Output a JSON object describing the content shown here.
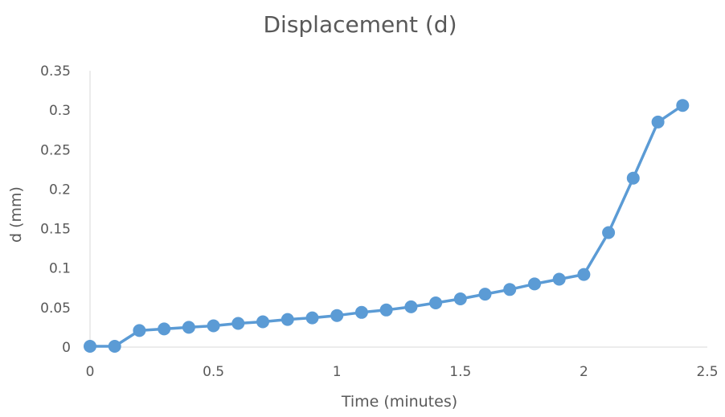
{
  "chart_data": {
    "type": "line",
    "title": "Displacement (d)",
    "xlabel": "Time (minutes)",
    "ylabel": "d (mm)",
    "xlim": [
      0,
      2.5
    ],
    "ylim": [
      0,
      0.35
    ],
    "x_ticks": [
      "0",
      "0.5",
      "1",
      "1.5",
      "2",
      "2.5"
    ],
    "y_ticks": [
      "0",
      "0.05",
      "0.1",
      "0.15",
      "0.2",
      "0.25",
      "0.3",
      "0.35"
    ],
    "grid": false,
    "legend": "none",
    "series": [
      {
        "color": "#5B9BD5",
        "markers": true,
        "x": [
          0,
          0.1,
          0.2,
          0.3,
          0.4,
          0.5,
          0.6,
          0.7,
          0.8,
          0.9,
          1.0,
          1.1,
          1.2,
          1.3,
          1.4,
          1.5,
          1.6,
          1.7,
          1.8,
          1.9,
          2.0,
          2.1,
          2.2,
          2.3,
          2.4
        ],
        "y": [
          0.001,
          0.001,
          0.021,
          0.023,
          0.025,
          0.027,
          0.03,
          0.032,
          0.035,
          0.037,
          0.04,
          0.044,
          0.047,
          0.051,
          0.056,
          0.061,
          0.067,
          0.073,
          0.08,
          0.086,
          0.092,
          0.145,
          0.214,
          0.285,
          0.306
        ]
      }
    ]
  }
}
